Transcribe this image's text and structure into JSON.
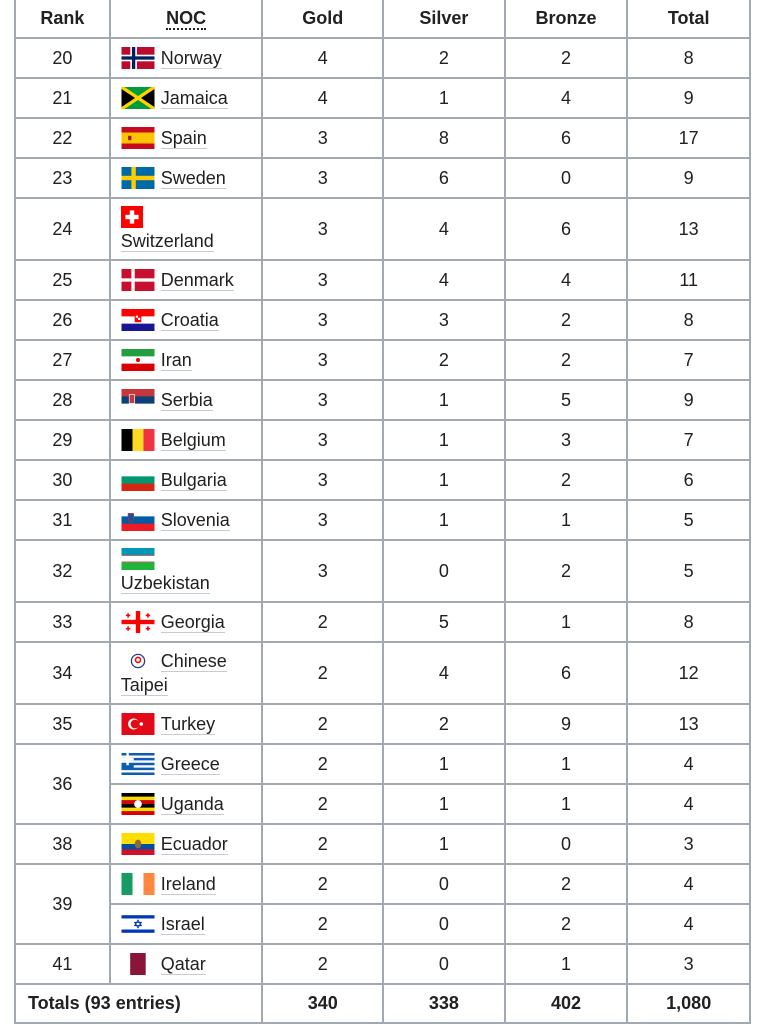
{
  "header": {
    "columns": [
      "Rank",
      "NOC",
      "Gold",
      "Silver",
      "Bronze",
      "Total"
    ]
  },
  "rows": [
    {
      "rank": "20",
      "noc": "Norway",
      "gold": 4,
      "silver": 2,
      "bronze": 2,
      "total": 8
    },
    {
      "rank": "21",
      "noc": "Jamaica",
      "gold": 4,
      "silver": 1,
      "bronze": 4,
      "total": 9
    },
    {
      "rank": "22",
      "noc": "Spain",
      "gold": 3,
      "silver": 8,
      "bronze": 6,
      "total": 17
    },
    {
      "rank": "23",
      "noc": "Sweden",
      "gold": 3,
      "silver": 6,
      "bronze": 0,
      "total": 9
    },
    {
      "rank": "24",
      "noc": "Switzerland",
      "gold": 3,
      "silver": 4,
      "bronze": 6,
      "total": 13
    },
    {
      "rank": "25",
      "noc": "Denmark",
      "gold": 3,
      "silver": 4,
      "bronze": 4,
      "total": 11
    },
    {
      "rank": "26",
      "noc": "Croatia",
      "gold": 3,
      "silver": 3,
      "bronze": 2,
      "total": 8
    },
    {
      "rank": "27",
      "noc": "Iran",
      "gold": 3,
      "silver": 2,
      "bronze": 2,
      "total": 7
    },
    {
      "rank": "28",
      "noc": "Serbia",
      "gold": 3,
      "silver": 1,
      "bronze": 5,
      "total": 9
    },
    {
      "rank": "29",
      "noc": "Belgium",
      "gold": 3,
      "silver": 1,
      "bronze": 3,
      "total": 7
    },
    {
      "rank": "30",
      "noc": "Bulgaria",
      "gold": 3,
      "silver": 1,
      "bronze": 2,
      "total": 6
    },
    {
      "rank": "31",
      "noc": "Slovenia",
      "gold": 3,
      "silver": 1,
      "bronze": 1,
      "total": 5
    },
    {
      "rank": "32",
      "noc": "Uzbekistan",
      "gold": 3,
      "silver": 0,
      "bronze": 2,
      "total": 5
    },
    {
      "rank": "33",
      "noc": "Georgia",
      "gold": 2,
      "silver": 5,
      "bronze": 1,
      "total": 8
    },
    {
      "rank": "34",
      "noc": "Chinese Taipei",
      "gold": 2,
      "silver": 4,
      "bronze": 6,
      "total": 12
    },
    {
      "rank": "35",
      "noc": "Turkey",
      "gold": 2,
      "silver": 2,
      "bronze": 9,
      "total": 13
    },
    {
      "rank": "36",
      "noc": "Greece",
      "gold": 2,
      "silver": 1,
      "bronze": 1,
      "total": 4
    },
    {
      "noc": "Uganda",
      "gold": 2,
      "silver": 1,
      "bronze": 1,
      "total": 4
    },
    {
      "rank": "38",
      "noc": "Ecuador",
      "gold": 2,
      "silver": 1,
      "bronze": 0,
      "total": 3
    },
    {
      "rank": "39",
      "noc": "Ireland",
      "gold": 2,
      "silver": 0,
      "bronze": 2,
      "total": 4
    },
    {
      "noc": "Israel",
      "gold": 2,
      "silver": 0,
      "bronze": 2,
      "total": 4
    },
    {
      "rank": "41",
      "noc": "Qatar",
      "gold": 2,
      "silver": 0,
      "bronze": 1,
      "total": 3
    }
  ],
  "totals": {
    "label": "Totals (93 entries)",
    "gold": 340,
    "silver": 338,
    "bronze": 402,
    "total": "1,080"
  }
}
